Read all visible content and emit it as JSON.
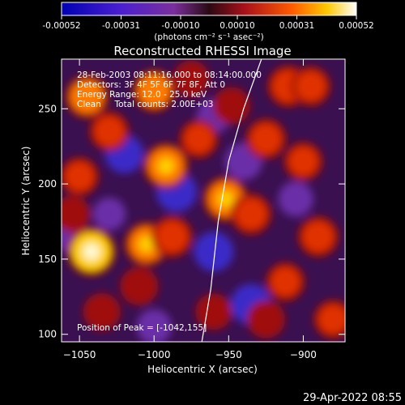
{
  "colorbar": {
    "ticks": [
      "-0.00052",
      "-0.00031",
      "-0.00010",
      "0.00010",
      "0.00031",
      "0.00052"
    ],
    "tick_values": [
      -0.00052,
      -0.00031,
      -0.0001,
      0.0001,
      0.00031,
      0.00052
    ],
    "range": [
      -0.00052,
      0.00052
    ],
    "units_label": "(photons cm⁻² s⁻¹ asec⁻²)"
  },
  "annotations": {
    "line1": "28-Feb-2003 08:11:16.000 to 08:14:00.000",
    "line2": "Detectors: 3F 4F 5F 6F 7F 8F, Att 0",
    "line3": "Energy Range: 12.0 - 25.0 keV",
    "line4": "Clean     Total counts: 2.00E+03",
    "peak": "Position of Peak = [-1042,155]"
  },
  "footer": {
    "date": "29-Apr-2022 08:55"
  },
  "chart_data": {
    "type": "heatmap",
    "title": "Reconstructed RHESSI Image",
    "xlabel": "Heliocentric X (arcsec)",
    "ylabel": "Heliocentric Y (arcsec)",
    "xlim": [
      -1062,
      -872
    ],
    "ylim": [
      95,
      283
    ],
    "xticks": [
      -1050,
      -1000,
      -950,
      -900
    ],
    "yticks": [
      100,
      150,
      200,
      250
    ],
    "xtick_labels": [
      "−1050",
      "−1000",
      "−950",
      "−900"
    ],
    "ytick_labels": [
      "100",
      "150",
      "200",
      "250"
    ],
    "colormap": "red-temperature (dark blue to white)",
    "limb_curve": [
      [
        -968,
        95
      ],
      [
        -962,
        130
      ],
      [
        -957,
        175
      ],
      [
        -950,
        215
      ],
      [
        -940,
        250
      ],
      [
        -928,
        283
      ]
    ],
    "peak_position": [
      -1042,
      155
    ],
    "hot_spots": [
      {
        "x": -1045,
        "y": 258,
        "v": 0.0004
      },
      {
        "x": -1030,
        "y": 235,
        "v": 0.00032
      },
      {
        "x": -1000,
        "y": 262,
        "v": 0.00038
      },
      {
        "x": -992,
        "y": 212,
        "v": 0.00045
      },
      {
        "x": -1042,
        "y": 155,
        "v": 0.00052
      },
      {
        "x": -1050,
        "y": 205,
        "v": 0.0003
      },
      {
        "x": -1010,
        "y": 132,
        "v": 0.00028
      },
      {
        "x": -1005,
        "y": 160,
        "v": 0.00042
      },
      {
        "x": -988,
        "y": 165,
        "v": 0.00036
      },
      {
        "x": -970,
        "y": 230,
        "v": 0.0003
      },
      {
        "x": -952,
        "y": 190,
        "v": 0.00044
      },
      {
        "x": -935,
        "y": 180,
        "v": 0.00035
      },
      {
        "x": -925,
        "y": 230,
        "v": 0.00034
      },
      {
        "x": -910,
        "y": 265,
        "v": 0.00036
      },
      {
        "x": -895,
        "y": 265,
        "v": 0.00032
      },
      {
        "x": -900,
        "y": 215,
        "v": 0.0003
      },
      {
        "x": -890,
        "y": 165,
        "v": 0.00034
      },
      {
        "x": -912,
        "y": 135,
        "v": 0.0003
      },
      {
        "x": -1035,
        "y": 115,
        "v": 0.00026
      },
      {
        "x": -960,
        "y": 115,
        "v": 0.00024
      },
      {
        "x": -925,
        "y": 110,
        "v": 0.00028
      },
      {
        "x": -880,
        "y": 110,
        "v": 0.0003
      },
      {
        "x": -1055,
        "y": 180,
        "v": 0.00024
      },
      {
        "x": -975,
        "y": 270,
        "v": 0.00024
      },
      {
        "x": -948,
        "y": 252,
        "v": 0.00026
      }
    ],
    "cold_spots": [
      {
        "x": -1020,
        "y": 220,
        "v": -0.00028
      },
      {
        "x": -985,
        "y": 195,
        "v": -0.00032
      },
      {
        "x": -1055,
        "y": 165,
        "v": -0.00022
      },
      {
        "x": -960,
        "y": 155,
        "v": -0.0003
      },
      {
        "x": -940,
        "y": 215,
        "v": -0.00026
      },
      {
        "x": -935,
        "y": 120,
        "v": -0.00032
      },
      {
        "x": -905,
        "y": 190,
        "v": -0.00022
      },
      {
        "x": -1000,
        "y": 105,
        "v": -0.00022
      },
      {
        "x": -960,
        "y": 245,
        "v": -0.0002
      },
      {
        "x": -1030,
        "y": 180,
        "v": -0.00018
      }
    ]
  }
}
